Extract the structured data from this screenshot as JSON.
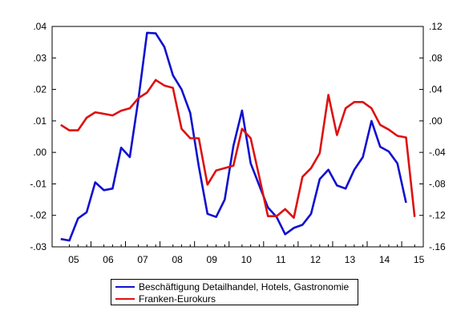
{
  "chart_data": {
    "type": "line",
    "title": "",
    "xlabel": "",
    "x_tick_labels": [
      "05",
      "06",
      "07",
      "08",
      "09",
      "10",
      "11",
      "12",
      "13",
      "14",
      "15"
    ],
    "x_years": [
      2005,
      2006,
      2007,
      2008,
      2009,
      2010,
      2011,
      2012,
      2013,
      2014,
      2015
    ],
    "xlim": [
      2004.75,
      2015.5
    ],
    "left_axis": {
      "ylim": [
        -0.03,
        0.04
      ],
      "ticks": [
        0.04,
        0.03,
        0.02,
        0.01,
        0.0,
        -0.01,
        -0.02,
        -0.03
      ],
      "tick_labels": [
        ".04",
        ".03",
        ".02",
        ".01",
        ".00",
        "-.01",
        "-.02",
        "-.03"
      ]
    },
    "right_axis": {
      "ylim": [
        -0.16,
        0.12
      ],
      "ticks": [
        0.12,
        0.08,
        0.04,
        0.0,
        -0.04,
        -0.08,
        -0.12,
        -0.16
      ],
      "tick_labels": [
        ".12",
        ".08",
        ".04",
        ".00",
        "-.04",
        "-.08",
        "-.12",
        "-.16"
      ]
    },
    "series": [
      {
        "name": "Beschäftigung Detailhandel, Hotels, Gastronomie",
        "axis": "left",
        "color": "#1010d0",
        "x": [
          2005.0,
          2005.25,
          2005.5,
          2005.75,
          2006.0,
          2006.25,
          2006.5,
          2006.75,
          2007.0,
          2007.25,
          2007.5,
          2007.75,
          2008.0,
          2008.25,
          2008.5,
          2008.75,
          2009.0,
          2009.25,
          2009.5,
          2009.75,
          2010.0,
          2010.25,
          2010.5,
          2010.75,
          2011.0,
          2011.25,
          2011.5,
          2011.75,
          2012.0,
          2012.25,
          2012.5,
          2012.75,
          2013.0,
          2013.25,
          2013.5,
          2013.75,
          2014.0,
          2014.25,
          2014.5,
          2014.75
        ],
        "y": [
          -0.0275,
          -0.028,
          -0.021,
          -0.019,
          -0.0095,
          -0.012,
          -0.0115,
          0.0015,
          -0.0015,
          0.017,
          0.038,
          0.0378,
          0.0335,
          0.0245,
          0.02,
          0.0125,
          -0.0045,
          -0.0195,
          -0.0205,
          -0.015,
          0.002,
          0.0133,
          -0.0035,
          -0.0105,
          -0.0175,
          -0.0205,
          -0.026,
          -0.024,
          -0.023,
          -0.0195,
          -0.0085,
          -0.0055,
          -0.0105,
          -0.0115,
          -0.0055,
          -0.0015,
          0.01,
          0.0018,
          0.0003,
          -0.0035
        ],
        "y_tail": [
          [
            2015.0,
            -0.016
          ]
        ]
      },
      {
        "name": "Franken-Eurokurs",
        "axis": "right",
        "color": "#dd1111",
        "x": [
          2005.0,
          2005.25,
          2005.5,
          2005.75,
          2006.0,
          2006.25,
          2006.5,
          2006.75,
          2007.0,
          2007.25,
          2007.5,
          2007.75,
          2008.0,
          2008.25,
          2008.5,
          2008.75,
          2009.0,
          2009.25,
          2009.5,
          2009.75,
          2010.0,
          2010.25,
          2010.5,
          2010.75,
          2011.0,
          2011.25,
          2011.5,
          2011.75,
          2012.0,
          2012.25,
          2012.5,
          2012.75,
          2013.0,
          2013.25,
          2013.5,
          2013.75,
          2014.0,
          2014.25,
          2014.5,
          2014.75,
          2015.0,
          2015.25
        ],
        "y": [
          -0.005,
          -0.012,
          -0.012,
          0.004,
          0.011,
          0.009,
          0.007,
          0.013,
          0.016,
          0.029,
          0.036,
          0.052,
          0.045,
          0.042,
          -0.01,
          -0.022,
          -0.022,
          -0.081,
          -0.063,
          -0.06,
          -0.057,
          -0.01,
          -0.022,
          -0.071,
          -0.121,
          -0.121,
          -0.112,
          -0.123,
          -0.071,
          -0.06,
          -0.041,
          0.033,
          -0.018,
          0.016,
          0.024,
          0.024,
          0.016,
          -0.005,
          -0.011,
          -0.019,
          -0.021,
          -0.122
        ]
      }
    ],
    "legend_position": "bottom-center",
    "grid": false
  }
}
